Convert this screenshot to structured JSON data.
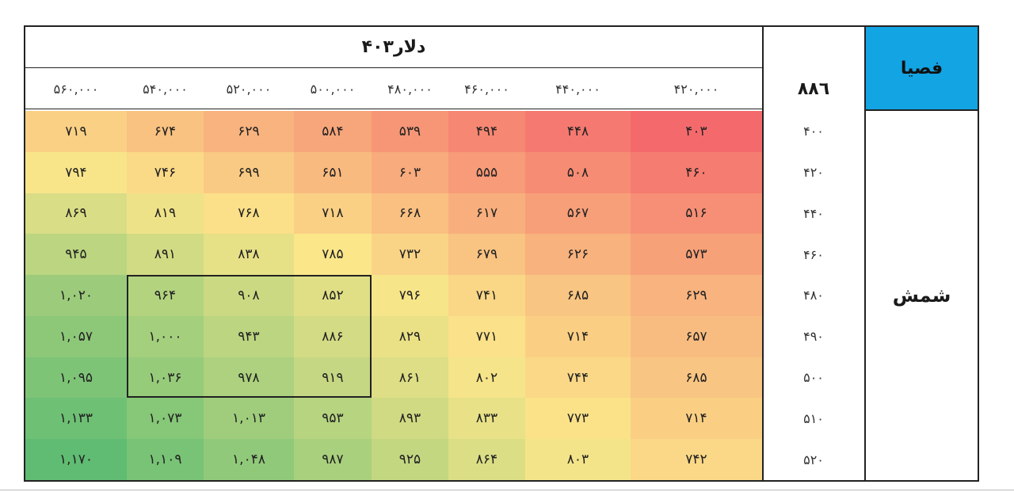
{
  "table": {
    "top_header": "۴۰۳دلار",
    "corner_value": "۸۸٦",
    "row_variable": "فصیا",
    "column_variable": "شمش",
    "highlight_block": {
      "rows": [
        4,
        6
      ],
      "cols": [
        1,
        3
      ]
    },
    "colors": {
      "low": "#f46a6c",
      "mid": "#fbe68a",
      "high": "#5fbc72",
      "header_blue": "#13a4e3"
    }
  },
  "chart_data": {
    "type": "heatmap",
    "x_header_order": "left-to-right",
    "x": [
      "۵۶۰,۰۰۰",
      "۵۴۰,۰۰۰",
      "۵۲۰,۰۰۰",
      "۵۰۰,۰۰۰",
      "۴۸۰,۰۰۰",
      "۴۶۰,۰۰۰",
      "۴۴۰,۰۰۰",
      "۴۲۰,۰۰۰"
    ],
    "y": [
      "۴۰۰",
      "۴۲۰",
      "۴۴۰",
      "۴۶۰",
      "۴۸۰",
      "۴۹۰",
      "۵۰۰",
      "۵۱۰",
      "۵۲۰"
    ],
    "labels": [
      [
        "۷۱۹",
        "۶۷۴",
        "۶۲۹",
        "۵۸۴",
        "۵۳۹",
        "۴۹۴",
        "۴۴۸",
        "۴۰۳"
      ],
      [
        "۷۹۴",
        "۷۴۶",
        "۶۹۹",
        "۶۵۱",
        "۶۰۳",
        "۵۵۵",
        "۵۰۸",
        "۴۶۰"
      ],
      [
        "۸۶۹",
        "۸۱۹",
        "۷۶۸",
        "۷۱۸",
        "۶۶۸",
        "۶۱۷",
        "۵۶۷",
        "۵۱۶"
      ],
      [
        "۹۴۵",
        "۸۹۱",
        "۸۳۸",
        "۷۸۵",
        "۷۳۲",
        "۶۷۹",
        "۶۲۶",
        "۵۷۳"
      ],
      [
        "۱,۰۲۰",
        "۹۶۴",
        "۹۰۸",
        "۸۵۲",
        "۷۹۶",
        "۷۴۱",
        "۶۸۵",
        "۶۲۹"
      ],
      [
        "۱,۰۵۷",
        "۱,۰۰۰",
        "۹۴۳",
        "۸۸۶",
        "۸۲۹",
        "۷۷۱",
        "۷۱۴",
        "۶۵۷"
      ],
      [
        "۱,۰۹۵",
        "۱,۰۳۶",
        "۹۷۸",
        "۹۱۹",
        "۸۶۱",
        "۸۰۲",
        "۷۴۴",
        "۶۸۵"
      ],
      [
        "۱,۱۳۳",
        "۱,۰۷۳",
        "۱,۰۱۳",
        "۹۵۳",
        "۸۹۳",
        "۸۳۳",
        "۷۷۳",
        "۷۱۴"
      ],
      [
        "۱,۱۷۰",
        "۱,۱۰۹",
        "۱,۰۴۸",
        "۹۸۷",
        "۹۲۵",
        "۸۶۴",
        "۸۰۳",
        "۷۴۲"
      ]
    ],
    "values": [
      [
        719,
        674,
        629,
        584,
        539,
        494,
        448,
        403
      ],
      [
        794,
        746,
        699,
        651,
        603,
        555,
        508,
        460
      ],
      [
        869,
        819,
        768,
        718,
        668,
        617,
        567,
        516
      ],
      [
        945,
        891,
        838,
        785,
        732,
        679,
        626,
        573
      ],
      [
        1020,
        964,
        908,
        852,
        796,
        741,
        685,
        629
      ],
      [
        1057,
        1000,
        943,
        886,
        829,
        771,
        714,
        657
      ],
      [
        1095,
        1036,
        978,
        919,
        861,
        802,
        744,
        685
      ],
      [
        1133,
        1073,
        1013,
        953,
        893,
        833,
        773,
        714
      ],
      [
        1170,
        1109,
        1048,
        987,
        925,
        864,
        803,
        742
      ]
    ]
  }
}
